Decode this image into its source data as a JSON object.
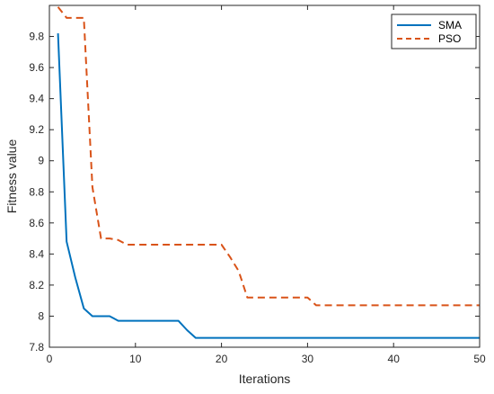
{
  "chart_data": {
    "type": "line",
    "title": "",
    "xlabel": "Iterations",
    "ylabel": "Fitness value",
    "xlim": [
      0,
      50
    ],
    "ylim": [
      7.8,
      10
    ],
    "xticks": [
      0,
      10,
      20,
      30,
      40,
      50
    ],
    "xtick_labels": [
      "0",
      "10",
      "20",
      "30",
      "40",
      "50"
    ],
    "yticks": [
      7.8,
      8,
      8.2,
      8.4,
      8.6,
      8.8,
      9,
      9.2,
      9.4,
      9.6,
      9.8
    ],
    "ytick_labels": [
      "7.8",
      "8",
      "8.2",
      "8.4",
      "8.6",
      "8.8",
      "9",
      "9.2",
      "9.4",
      "9.6",
      "9.8"
    ],
    "grid": false,
    "legend_position": "top-right",
    "series": [
      {
        "name": "SMA",
        "color": "#0072BD",
        "style": "solid",
        "x": [
          1,
          2,
          3,
          4,
          5,
          6,
          7,
          8,
          9,
          10,
          11,
          12,
          13,
          14,
          15,
          16,
          17,
          18,
          19,
          20,
          21,
          22,
          23,
          24,
          25,
          26,
          27,
          28,
          29,
          30,
          31,
          32,
          33,
          34,
          35,
          36,
          37,
          38,
          39,
          40,
          41,
          42,
          43,
          44,
          45,
          46,
          47,
          48,
          49,
          50
        ],
        "values": [
          9.82,
          8.48,
          8.25,
          8.05,
          8.0,
          8.0,
          8.0,
          7.97,
          7.97,
          7.97,
          7.97,
          7.97,
          7.97,
          7.97,
          7.97,
          7.91,
          7.86,
          7.86,
          7.86,
          7.86,
          7.86,
          7.86,
          7.86,
          7.86,
          7.86,
          7.86,
          7.86,
          7.86,
          7.86,
          7.86,
          7.86,
          7.86,
          7.86,
          7.86,
          7.86,
          7.86,
          7.86,
          7.86,
          7.86,
          7.86,
          7.86,
          7.86,
          7.86,
          7.86,
          7.86,
          7.86,
          7.86,
          7.86,
          7.86,
          7.86
        ]
      },
      {
        "name": "PSO",
        "color": "#D95319",
        "style": "dashed",
        "x": [
          1,
          2,
          3,
          4,
          5,
          6,
          7,
          8,
          9,
          10,
          11,
          12,
          13,
          14,
          15,
          16,
          17,
          18,
          19,
          20,
          21,
          22,
          23,
          24,
          25,
          26,
          27,
          28,
          29,
          30,
          31,
          32,
          33,
          34,
          35,
          36,
          37,
          38,
          39,
          40,
          41,
          42,
          43,
          44,
          45,
          46,
          47,
          48,
          49,
          50
        ],
        "values": [
          9.99,
          9.92,
          9.92,
          9.92,
          8.83,
          8.5,
          8.5,
          8.49,
          8.46,
          8.46,
          8.46,
          8.46,
          8.46,
          8.46,
          8.46,
          8.46,
          8.46,
          8.46,
          8.46,
          8.46,
          8.38,
          8.29,
          8.12,
          8.12,
          8.12,
          8.12,
          8.12,
          8.12,
          8.12,
          8.12,
          8.07,
          8.07,
          8.07,
          8.07,
          8.07,
          8.07,
          8.07,
          8.07,
          8.07,
          8.07,
          8.07,
          8.07,
          8.07,
          8.07,
          8.07,
          8.07,
          8.07,
          8.07,
          8.07,
          8.07
        ]
      }
    ]
  }
}
